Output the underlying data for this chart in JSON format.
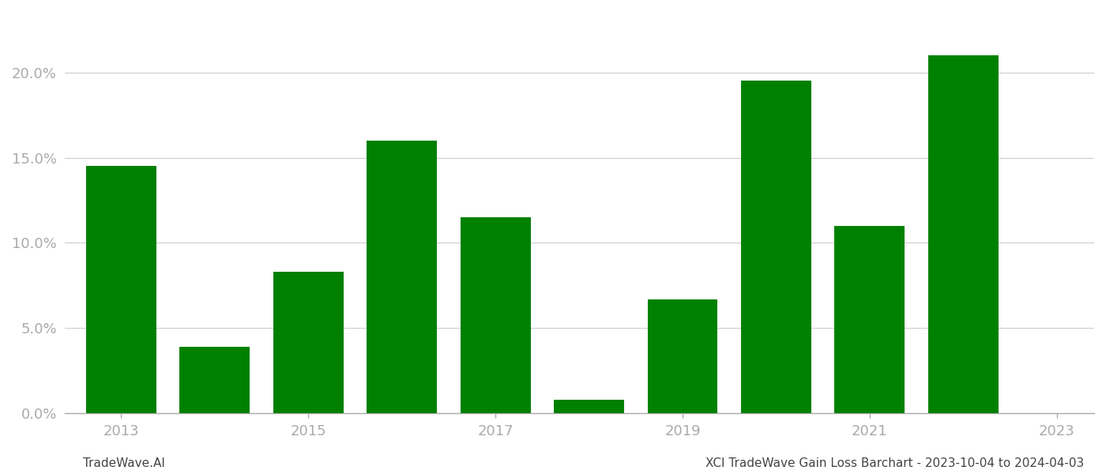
{
  "years": [
    2013,
    2014,
    2015,
    2016,
    2017,
    2018,
    2019,
    2020,
    2021,
    2022
  ],
  "values": [
    0.145,
    0.039,
    0.083,
    0.16,
    0.115,
    0.008,
    0.067,
    0.195,
    0.11,
    0.21
  ],
  "bar_color": "#008000",
  "background_color": "#ffffff",
  "grid_color": "#cccccc",
  "axis_color": "#aaaaaa",
  "tick_label_color": "#aaaaaa",
  "footer_left": "TradeWave.AI",
  "footer_right": "XCI TradeWave Gain Loss Barchart - 2023-10-04 to 2024-04-03",
  "ytick_positions": [
    0.0,
    0.05,
    0.1,
    0.15,
    0.2
  ],
  "ytick_labels": [
    "0.0%",
    "5.0%",
    "10.0%",
    "15.0%",
    "20.0%"
  ],
  "xtick_positions": [
    2013,
    2015,
    2017,
    2019,
    2021,
    2023
  ],
  "xtick_labels": [
    "2013",
    "2015",
    "2017",
    "2019",
    "2021",
    "2023"
  ],
  "ylim": [
    0,
    0.23
  ],
  "xlim": [
    2012.4,
    2023.4
  ],
  "bar_width": 0.75
}
